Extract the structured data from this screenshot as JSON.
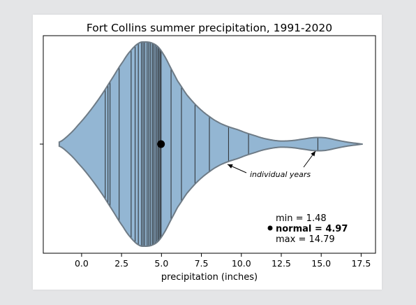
{
  "chart_data": {
    "type": "violin",
    "title": "Fort Collins summer precipitation, 1991-2020",
    "xlabel": "precipitation (inches)",
    "ylabel": "",
    "xlim": [
      -2.4,
      18.4
    ],
    "xticks": [
      0.0,
      2.5,
      5.0,
      7.5,
      10.0,
      12.5,
      15.0,
      17.5
    ],
    "xtick_labels": [
      "0.0",
      "2.5",
      "5.0",
      "7.5",
      "10.0",
      "12.5",
      "15.0",
      "17.5"
    ],
    "violin_extent": [
      -1.4,
      17.6
    ],
    "density_profile": {
      "x": [
        -1.4,
        -0.8,
        -0.2,
        0.5,
        1.2,
        1.9,
        2.6,
        3.1,
        3.6,
        4.0,
        4.4,
        4.8,
        5.2,
        5.6,
        6.0,
        6.6,
        7.3,
        8.0,
        8.6,
        9.2,
        9.8,
        10.3,
        10.8,
        11.3,
        11.9,
        12.5,
        13.2,
        13.9,
        14.5,
        15.0,
        15.4,
        16.0,
        16.7,
        17.2,
        17.6
      ],
      "half_width": [
        0.02,
        0.09,
        0.19,
        0.32,
        0.47,
        0.64,
        0.81,
        0.92,
        0.99,
        1.0,
        0.99,
        0.95,
        0.86,
        0.74,
        0.62,
        0.48,
        0.36,
        0.27,
        0.21,
        0.17,
        0.14,
        0.11,
        0.085,
        0.06,
        0.04,
        0.03,
        0.035,
        0.05,
        0.063,
        0.065,
        0.058,
        0.038,
        0.018,
        0.008,
        0.0
      ]
    },
    "individual_years": [
      1.48,
      1.65,
      1.78,
      2.35,
      3.1,
      3.35,
      3.55,
      3.75,
      3.85,
      3.95,
      4.1,
      4.2,
      4.3,
      4.42,
      4.5,
      4.6,
      4.7,
      4.78,
      4.85,
      4.92,
      4.98,
      5.6,
      6.25,
      7.1,
      8.0,
      9.2,
      10.45,
      14.79
    ],
    "median_marker": 4.97,
    "stats": {
      "min": 1.48,
      "normal": 4.97,
      "max": 14.79
    },
    "annotation": "individual years",
    "colors": {
      "fill": "#93b6d3",
      "outline": "#6e7b86",
      "lines": "#222222",
      "marker": "#000000"
    }
  },
  "legend": {
    "min_text": "min = 1.48",
    "normal_text": "normal = 4.97",
    "max_text": "max = 14.79"
  }
}
